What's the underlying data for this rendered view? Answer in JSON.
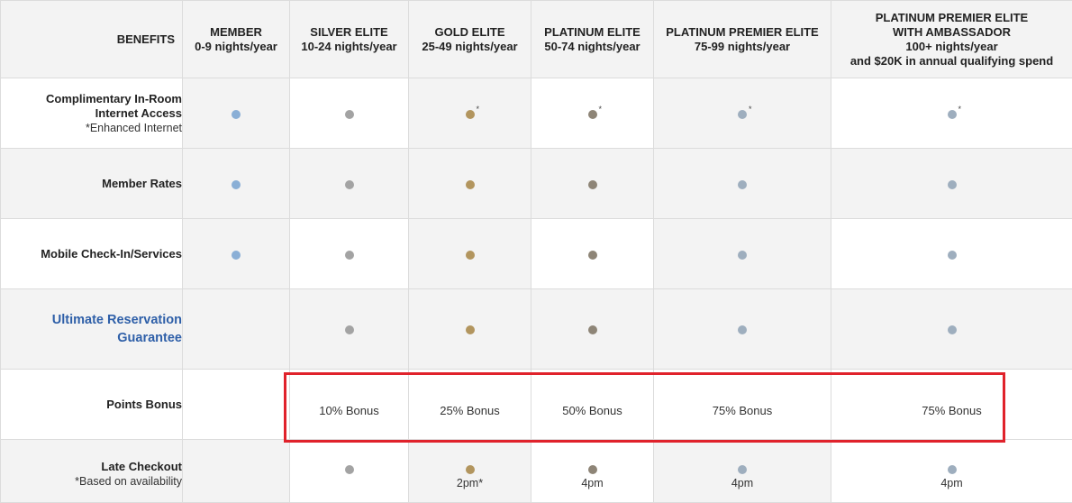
{
  "colors": {
    "member": "#8aafd6",
    "silver": "#a3a3a3",
    "gold": "#b2955e",
    "platinum": "#8e8577",
    "platinum_premier": "#9eaebe",
    "ambassador": "#9eaebe",
    "highlight_box": "#e0222b",
    "link": "#2e5fa8"
  },
  "header": {
    "benefits_label": "BENEFITS",
    "tiers": [
      {
        "name": "MEMBER",
        "range": "0-9 nights/year",
        "extra": ""
      },
      {
        "name": "SILVER ELITE",
        "range": "10-24 nights/year",
        "extra": ""
      },
      {
        "name": "GOLD ELITE",
        "range": "25-49 nights/year",
        "extra": ""
      },
      {
        "name": "PLATINUM ELITE",
        "range": "50-74 nights/year",
        "extra": ""
      },
      {
        "name": "PLATINUM PREMIER ELITE",
        "range": "75-99 nights/year",
        "extra": ""
      },
      {
        "name": "PLATINUM PREMIER ELITE WITH AMBASSADOR",
        "range": "100+ nights/year",
        "extra": "and $20K in annual qualifying spend"
      }
    ]
  },
  "rows": [
    {
      "label": "Complimentary In-Room Internet Access",
      "sub": "*Enhanced Internet",
      "available": [
        true,
        true,
        true,
        true,
        true,
        true
      ],
      "asterisk": [
        false,
        false,
        true,
        true,
        true,
        true
      ]
    },
    {
      "label": "Member Rates",
      "available": [
        true,
        true,
        true,
        true,
        true,
        true
      ]
    },
    {
      "label": "Mobile Check-In/Services",
      "available": [
        true,
        true,
        true,
        true,
        true,
        true
      ]
    },
    {
      "label": "Ultimate Reservation Guarantee",
      "is_link": true,
      "available": [
        false,
        true,
        true,
        true,
        true,
        true
      ]
    },
    {
      "label": "Points Bonus",
      "values": [
        "",
        "10% Bonus",
        "25% Bonus",
        "50% Bonus",
        "75% Bonus",
        "75% Bonus"
      ]
    },
    {
      "label": "Late Checkout",
      "sub": "*Based on availability",
      "available": [
        false,
        true,
        true,
        true,
        true,
        true
      ],
      "notes": [
        "",
        "",
        "2pm*",
        "4pm",
        "4pm",
        "4pm"
      ]
    }
  ]
}
